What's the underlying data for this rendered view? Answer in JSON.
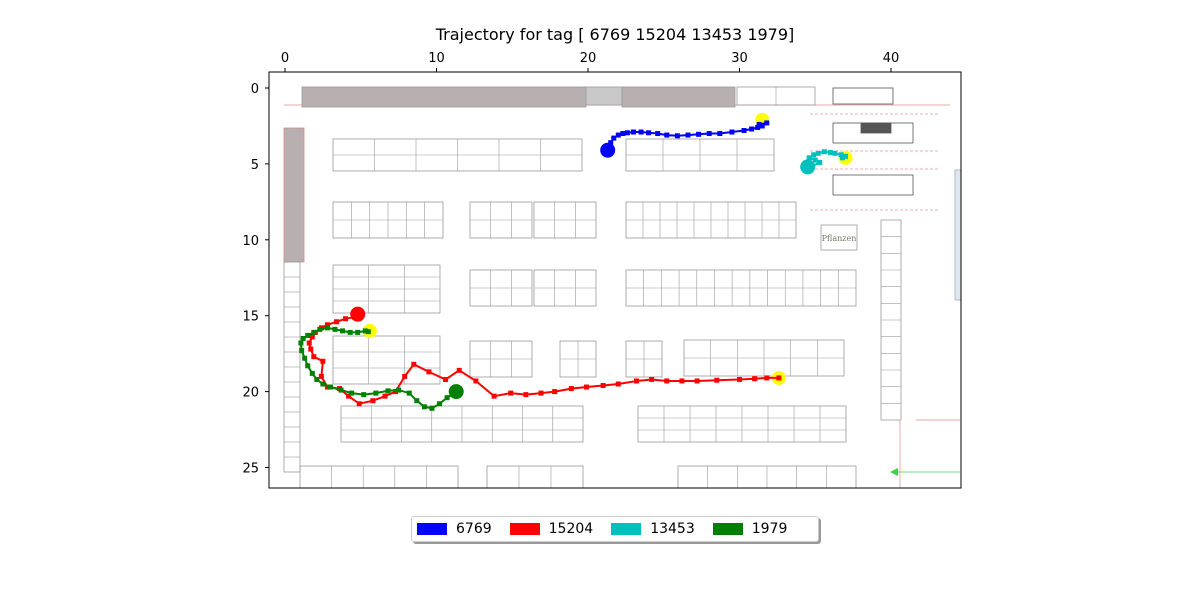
{
  "chart_data": {
    "type": "line",
    "title": "Trajectory for tag [ 6769 15204 13453  1979]",
    "xlim": [
      -1,
      44.5
    ],
    "ylim": [
      26.4,
      -1.0
    ],
    "x_inverted": false,
    "y_inverted": true,
    "x_axis_position": "top",
    "xticks": [
      0,
      10,
      20,
      30,
      40
    ],
    "yticks": [
      0,
      5,
      10,
      15,
      20,
      25
    ],
    "grid": false,
    "background": "floor plan image",
    "floorplan_text": [
      "Pflanzen"
    ],
    "legend_position": "bottom-center",
    "series": [
      {
        "name": "6769",
        "color": "#0000ff",
        "points": [
          [
            31.8,
            2.3
          ],
          [
            31.3,
            2.4
          ],
          [
            31.5,
            2.5
          ],
          [
            31.2,
            2.6
          ],
          [
            30.8,
            2.7
          ],
          [
            30.3,
            2.8
          ],
          [
            29.5,
            2.9
          ],
          [
            28.7,
            3.0
          ],
          [
            28.0,
            3.0
          ],
          [
            27.3,
            3.05
          ],
          [
            26.6,
            3.1
          ],
          [
            25.9,
            3.15
          ],
          [
            25.2,
            3.1
          ],
          [
            24.6,
            3.0
          ],
          [
            24.0,
            2.95
          ],
          [
            23.5,
            2.9
          ],
          [
            23.0,
            2.9
          ],
          [
            22.6,
            2.95
          ],
          [
            22.3,
            3.0
          ],
          [
            22.0,
            3.1
          ],
          [
            21.7,
            3.3
          ],
          [
            21.5,
            3.6
          ],
          [
            21.3,
            4.0
          ],
          [
            21.3,
            4.4
          ],
          [
            21.1,
            4.2
          ]
        ],
        "start": [
          31.5,
          2.1
        ],
        "end": [
          21.3,
          4.1
        ]
      },
      {
        "name": "15204",
        "color": "#ff0000",
        "points": [
          [
            32.6,
            19.1
          ],
          [
            31.8,
            19.1
          ],
          [
            31.0,
            19.15
          ],
          [
            30.0,
            19.2
          ],
          [
            28.5,
            19.25
          ],
          [
            27.2,
            19.3
          ],
          [
            26.2,
            19.3
          ],
          [
            25.2,
            19.3
          ],
          [
            24.2,
            19.2
          ],
          [
            23.2,
            19.3
          ],
          [
            22.0,
            19.5
          ],
          [
            21.0,
            19.6
          ],
          [
            19.9,
            19.7
          ],
          [
            18.9,
            19.8
          ],
          [
            17.8,
            20.0
          ],
          [
            16.9,
            20.1
          ],
          [
            15.9,
            20.2
          ],
          [
            14.9,
            20.1
          ],
          [
            13.8,
            20.3
          ],
          [
            12.6,
            19.3
          ],
          [
            11.5,
            18.6
          ],
          [
            10.6,
            19.2
          ],
          [
            9.5,
            18.7
          ],
          [
            8.5,
            18.2
          ],
          [
            7.9,
            19.0
          ],
          [
            7.3,
            20.0
          ],
          [
            6.6,
            20.3
          ],
          [
            5.8,
            20.6
          ],
          [
            4.9,
            20.8
          ],
          [
            4.2,
            20.3
          ],
          [
            3.6,
            19.8
          ],
          [
            2.8,
            19.7
          ],
          [
            2.4,
            19.0
          ],
          [
            2.5,
            18.0
          ],
          [
            1.9,
            17.7
          ],
          [
            1.7,
            17.2
          ],
          [
            1.6,
            16.8
          ],
          [
            1.8,
            16.4
          ],
          [
            2.0,
            16.1
          ],
          [
            2.4,
            15.8
          ],
          [
            2.8,
            15.6
          ],
          [
            3.4,
            15.4
          ],
          [
            4.0,
            15.2
          ],
          [
            4.6,
            15.1
          ]
        ],
        "start": [
          32.6,
          19.1
        ],
        "end": [
          4.8,
          14.9
        ]
      },
      {
        "name": "13453",
        "color": "#00bfbf",
        "points": [
          [
            34.7,
            5.2
          ],
          [
            35.3,
            4.9
          ],
          [
            35.0,
            4.75
          ],
          [
            34.6,
            4.6
          ],
          [
            34.9,
            4.4
          ],
          [
            35.2,
            4.3
          ],
          [
            35.6,
            4.2
          ],
          [
            36.0,
            4.25
          ],
          [
            36.3,
            4.3
          ],
          [
            36.7,
            4.4
          ],
          [
            37.0,
            4.5
          ],
          [
            36.8,
            4.6
          ]
        ],
        "start": [
          37.0,
          4.6
        ],
        "end": [
          34.5,
          5.2
        ]
      },
      {
        "name": "1979",
        "color": "#008000",
        "points": [
          [
            11.2,
            20.1
          ],
          [
            10.7,
            20.4
          ],
          [
            10.2,
            20.8
          ],
          [
            9.7,
            21.1
          ],
          [
            9.2,
            21.0
          ],
          [
            8.7,
            20.6
          ],
          [
            8.2,
            20.1
          ],
          [
            7.5,
            19.9
          ],
          [
            6.8,
            19.95
          ],
          [
            6.0,
            20.1
          ],
          [
            5.2,
            20.2
          ],
          [
            4.4,
            20.1
          ],
          [
            3.7,
            19.9
          ],
          [
            3.0,
            19.7
          ],
          [
            2.5,
            19.5
          ],
          [
            2.1,
            19.2
          ],
          [
            1.8,
            18.8
          ],
          [
            1.5,
            18.3
          ],
          [
            1.3,
            17.8
          ],
          [
            1.1,
            17.3
          ],
          [
            1.05,
            16.8
          ],
          [
            1.2,
            16.5
          ],
          [
            1.5,
            16.3
          ],
          [
            1.9,
            16.1
          ],
          [
            2.3,
            15.9
          ],
          [
            2.8,
            15.8
          ],
          [
            3.3,
            15.9
          ],
          [
            3.8,
            16.0
          ],
          [
            4.3,
            16.1
          ],
          [
            4.8,
            16.1
          ],
          [
            5.3,
            16.0
          ],
          [
            5.5,
            16.05
          ]
        ],
        "start": [
          5.6,
          16.0
        ],
        "end": [
          11.3,
          20.0
        ]
      }
    ]
  },
  "legend": {
    "items": [
      {
        "label": "6769",
        "color": "#0000ff"
      },
      {
        "label": "15204",
        "color": "#ff0000"
      },
      {
        "label": "13453",
        "color": "#00bfbf"
      },
      {
        "label": "1979",
        "color": "#008000"
      }
    ]
  },
  "marker_colors": {
    "start": "#ffff00"
  }
}
